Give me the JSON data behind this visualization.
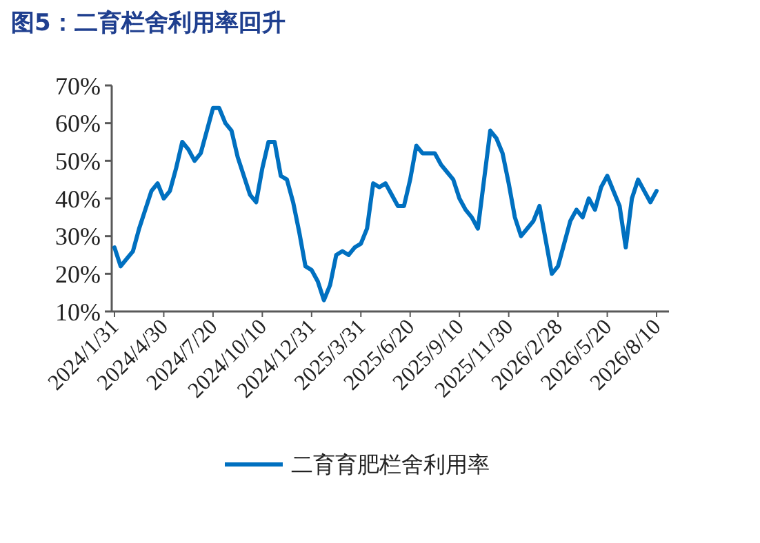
{
  "chart_data": {
    "type": "line",
    "title": "图5：二育栏舍利用率回升",
    "categories": [
      "2024/1/31",
      null,
      null,
      null,
      null,
      null,
      null,
      null,
      "2024/4/30",
      null,
      null,
      null,
      null,
      null,
      null,
      null,
      "2024/7/20",
      null,
      null,
      null,
      null,
      null,
      null,
      null,
      "2024/10/10",
      null,
      null,
      null,
      null,
      null,
      null,
      null,
      "2024/12/31",
      null,
      null,
      null,
      null,
      null,
      null,
      null,
      "2025/3/31",
      null,
      null,
      null,
      null,
      null,
      null,
      null,
      "2025/6/20",
      null,
      null,
      null,
      null,
      null,
      null,
      null,
      "2025/9/10",
      null,
      null,
      null,
      null,
      null,
      null,
      null,
      "2025/11/30",
      null,
      null,
      null,
      null,
      null,
      null,
      null,
      "2026/2/28",
      null,
      null,
      null,
      null,
      null,
      null,
      null,
      "2026/5/20",
      null,
      null,
      null,
      null,
      null,
      null,
      null,
      "2026/8/10"
    ],
    "series": [
      {
        "name": "二育育肥栏舍利用率",
        "color": "#0070c0",
        "values": [
          27,
          22,
          24,
          26,
          32,
          37,
          42,
          44,
          40,
          42,
          48,
          55,
          53,
          50,
          52,
          58,
          64,
          64,
          60,
          58,
          51,
          46,
          41,
          39,
          48,
          55,
          55,
          46,
          45,
          39,
          31,
          22,
          21,
          18,
          13,
          17,
          25,
          26,
          25,
          27,
          28,
          32,
          44,
          43,
          44,
          41,
          38,
          38,
          45,
          54,
          52,
          52,
          52,
          49,
          47,
          45,
          40,
          37,
          35,
          32,
          45,
          58,
          56,
          52,
          44,
          35,
          30,
          32,
          34,
          38,
          29,
          20,
          22,
          28,
          34,
          37,
          35,
          40,
          37,
          43,
          46,
          42,
          38,
          27,
          40,
          45,
          42,
          39,
          42
        ]
      }
    ],
    "ylim": [
      10,
      70
    ],
    "yticks": [
      {
        "value": 10,
        "label": "10%"
      },
      {
        "value": 20,
        "label": "20%"
      },
      {
        "value": 30,
        "label": "30%"
      },
      {
        "value": 40,
        "label": "40%"
      },
      {
        "value": 50,
        "label": "50%"
      },
      {
        "value": 60,
        "label": "60%"
      },
      {
        "value": 70,
        "label": "70%"
      }
    ],
    "grid": false,
    "legend": "bottom",
    "marker": "none",
    "line_style": "solid"
  }
}
